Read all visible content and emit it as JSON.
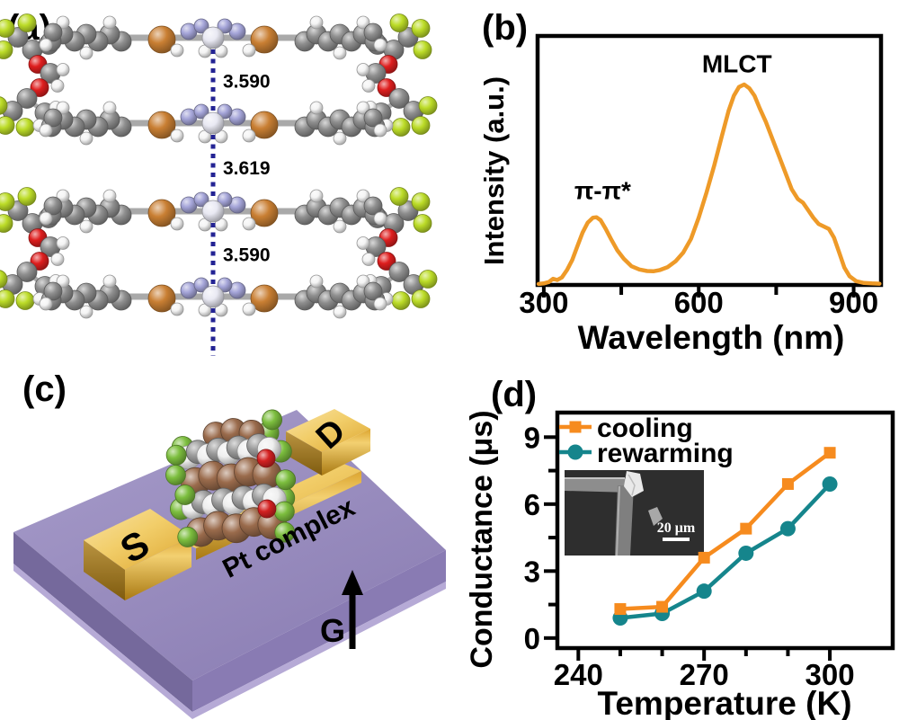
{
  "palette": {
    "spectrum_line": "#EE9A28",
    "cooling": "#F68B1E",
    "rewarming": "#15858C",
    "distance_text": "#232394",
    "substrate_top": "#9587C0",
    "substrate_side": "#8577B1",
    "substrate_rim": "#B6AAD6",
    "gold_light": "#F2CE6A",
    "gold_mid": "#DCA52F",
    "gold_dark": "#A97912",
    "atoms": {
      "C": "#8F8F8F",
      "H": "#F4F4F4",
      "F": "#BCDC28",
      "O": "#DE1E1E",
      "N": "#A4A4D8",
      "Br": "#C97F33",
      "Pt": "#E9E9F3",
      "sgreen": "#7CBE3E",
      "sbrown": "#9A6B4C",
      "swhite": "#EFEFEF",
      "sgray": "#9C9C9C",
      "sred": "#D32121"
    }
  },
  "panels": {
    "a": {
      "label": "(a)",
      "distances": [
        "3.590",
        "3.619",
        "3.590"
      ]
    },
    "b": {
      "label": "(b)",
      "xlabel": "Wavelength (nm)",
      "ylabel": "Intensity (a.u.)"
    },
    "c": {
      "label": "(c)",
      "source": "S",
      "drain": "D",
      "molecule": "Pt complex",
      "gate": "G"
    },
    "d": {
      "label": "(d)",
      "xlabel": "Temperature (K)",
      "ylabel": "Conductance (μs)",
      "inset_scale": "20 μm"
    }
  },
  "chart_data": [
    {
      "type": "line",
      "panel": "b",
      "title": "",
      "xlabel": "Wavelength (nm)",
      "ylabel": "Intensity (a.u.)",
      "xlim": [
        288,
        953
      ],
      "ylim": [
        0,
        1
      ],
      "x_major_ticks": [
        300,
        600,
        900
      ],
      "x_minor_ticks": [
        450,
        750
      ],
      "grid": false,
      "annotations": [
        {
          "text": "π-π*",
          "x": 414,
          "y": 0.38
        },
        {
          "text": "MLCT",
          "x": 674,
          "y": 0.89
        }
      ],
      "series": [
        {
          "name": "spectrum",
          "color": "#EE9A28",
          "x": [
            290,
            300,
            310,
            318,
            326,
            335,
            345,
            355,
            365,
            375,
            385,
            395,
            402,
            410,
            420,
            430,
            442,
            455,
            470,
            485,
            500,
            512,
            525,
            540,
            555,
            570,
            585,
            600,
            615,
            630,
            645,
            658,
            668,
            678,
            688,
            698,
            708,
            718,
            730,
            742,
            755,
            768,
            780,
            792,
            802,
            812,
            822,
            832,
            842,
            852,
            862,
            872,
            882,
            892,
            905,
            920,
            935,
            950
          ],
          "y": [
            0.004,
            0.006,
            0.012,
            0.025,
            0.02,
            0.03,
            0.06,
            0.1,
            0.155,
            0.21,
            0.25,
            0.27,
            0.272,
            0.26,
            0.225,
            0.185,
            0.14,
            0.105,
            0.075,
            0.062,
            0.056,
            0.055,
            0.06,
            0.072,
            0.095,
            0.13,
            0.185,
            0.27,
            0.37,
            0.48,
            0.6,
            0.7,
            0.76,
            0.795,
            0.805,
            0.79,
            0.76,
            0.71,
            0.655,
            0.59,
            0.52,
            0.45,
            0.385,
            0.345,
            0.33,
            0.3,
            0.27,
            0.245,
            0.235,
            0.225,
            0.19,
            0.13,
            0.07,
            0.035,
            0.015,
            0.008,
            0.006,
            0.005
          ]
        }
      ]
    },
    {
      "type": "line",
      "panel": "d",
      "title": "",
      "xlabel": "Temperature (K)",
      "ylabel": "Conductance (μs)",
      "xlim": [
        235,
        315
      ],
      "ylim": [
        -0.45,
        10.1
      ],
      "x_major_ticks": [
        240,
        270,
        300
      ],
      "x_minor_ticks": [
        250,
        260,
        280,
        290
      ],
      "y_major_ticks": [
        0,
        3,
        6,
        9
      ],
      "y_minor_ticks": [
        1.5,
        4.5,
        7.5
      ],
      "grid": false,
      "legend_position": "top-left",
      "series": [
        {
          "name": "cooling",
          "marker": "square",
          "color": "#F68B1E",
          "x": [
            250,
            260,
            270,
            280,
            290,
            300
          ],
          "y": [
            1.3,
            1.4,
            3.6,
            4.9,
            6.9,
            8.3
          ]
        },
        {
          "name": "rewarming",
          "marker": "circle",
          "color": "#15858C",
          "x": [
            250,
            260,
            270,
            280,
            290,
            300
          ],
          "y": [
            0.9,
            1.1,
            2.1,
            3.8,
            4.9,
            6.9
          ]
        }
      ],
      "inset": {
        "description": "SEM image of crystal on electrode corner",
        "scale_bar": "20 μm"
      }
    }
  ]
}
